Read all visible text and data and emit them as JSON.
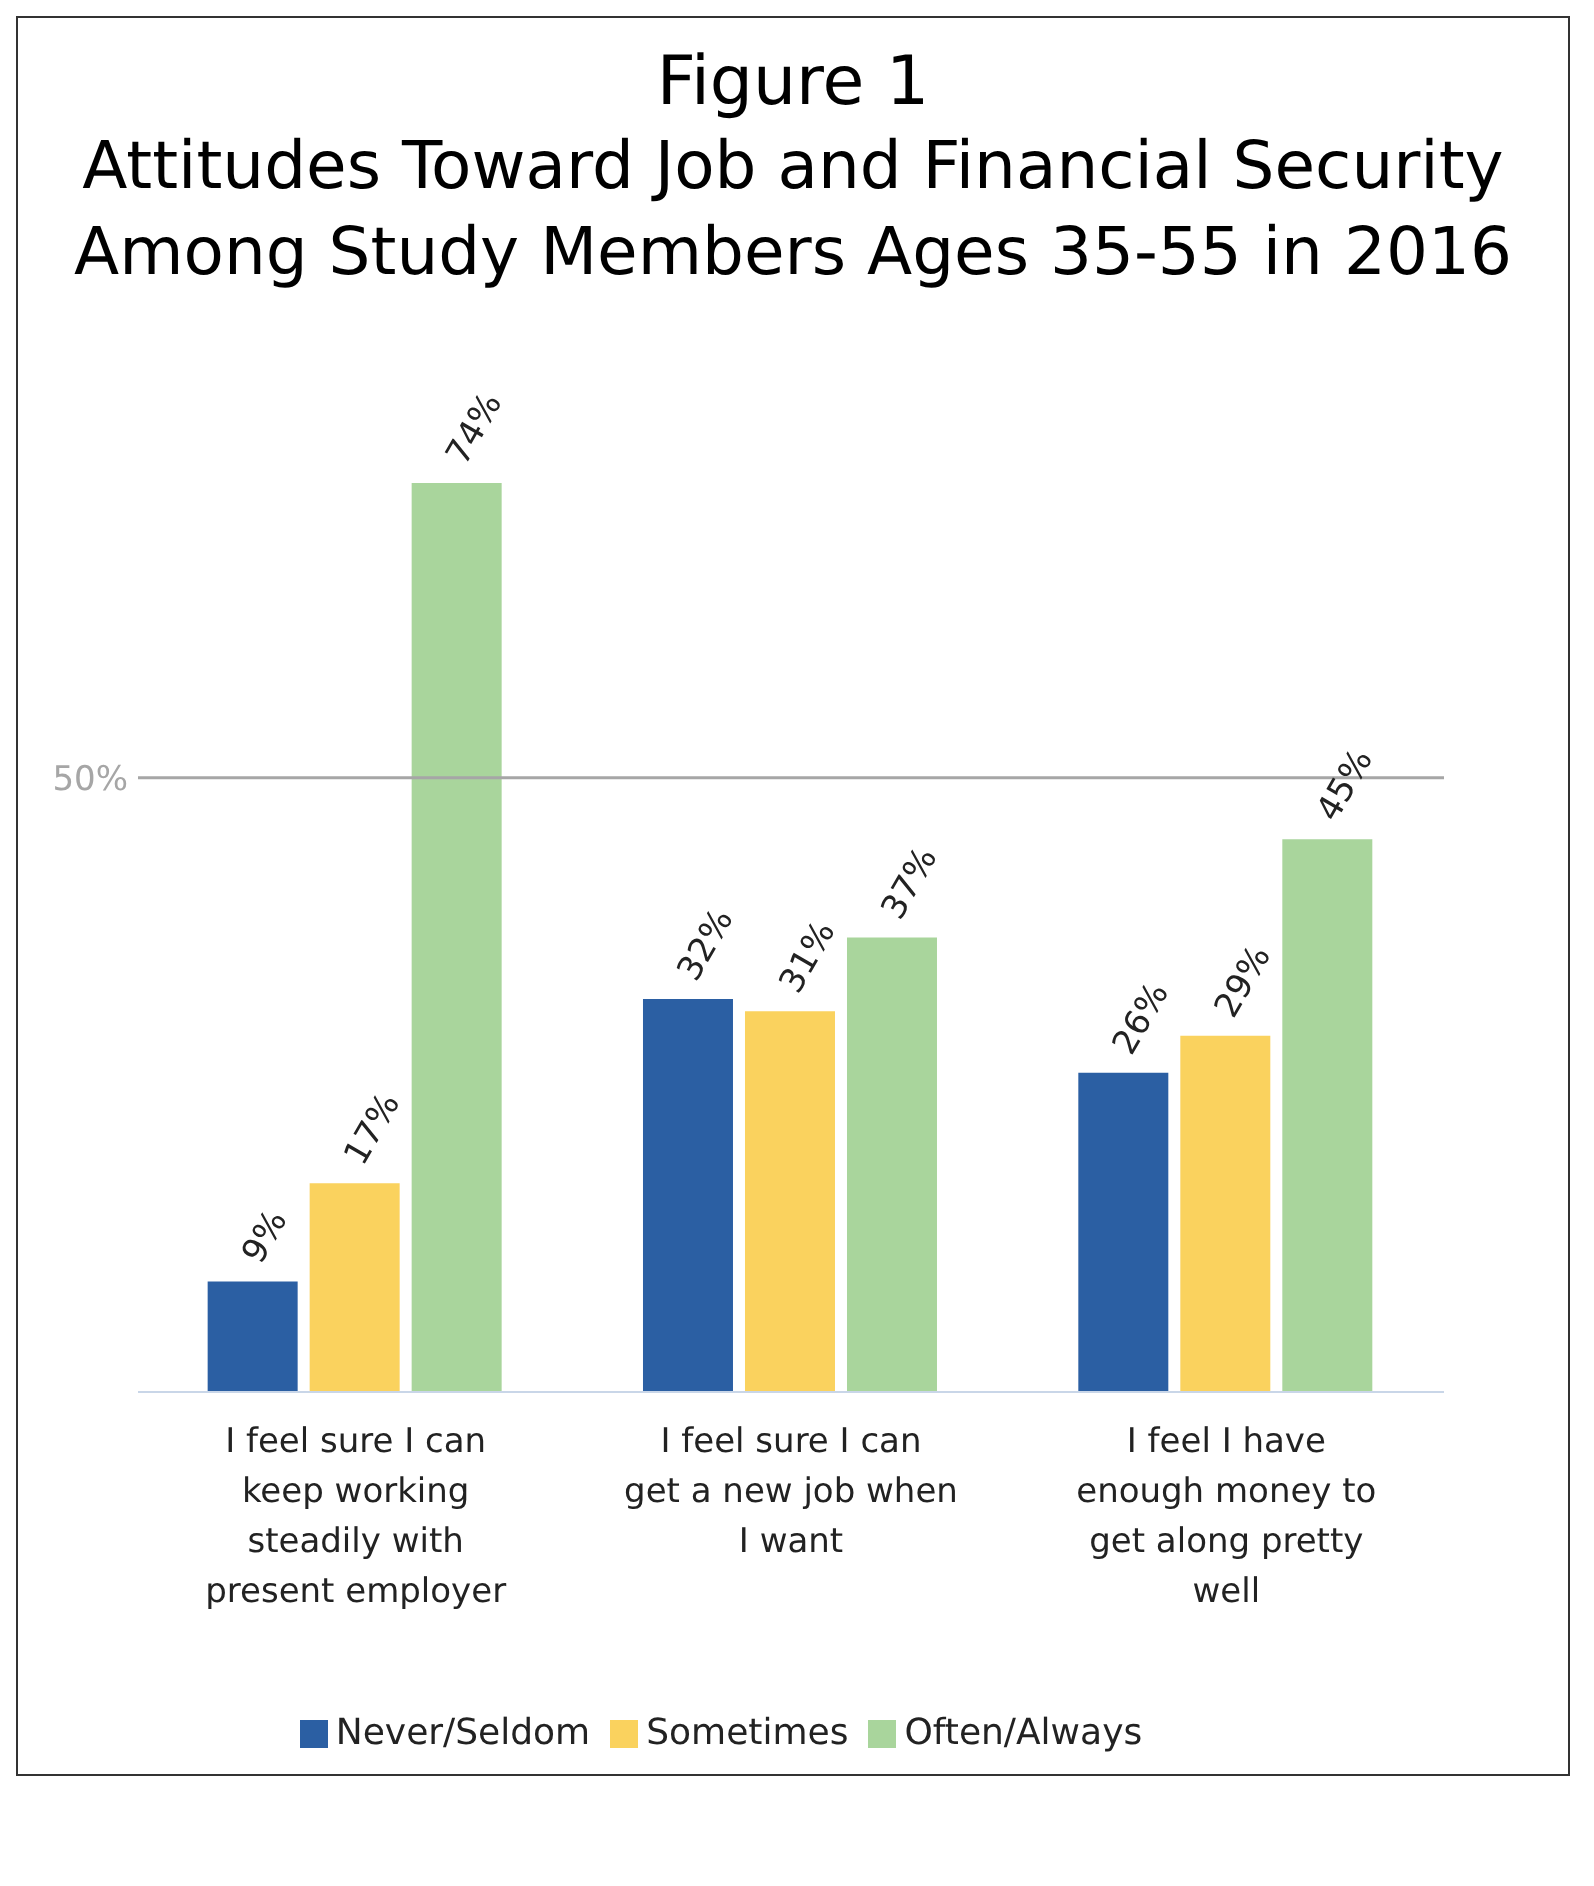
{
  "chart_data": {
    "type": "bar",
    "title": "Figure 1",
    "subtitle": "Attitudes Toward Job and Financial Security Among Study Members Ages 35-55 in 2016",
    "categories": [
      "I feel sure I can keep working steadily with present employer",
      "I feel sure I can get a new job when I want",
      "I feel I have enough money to get along pretty well"
    ],
    "series": [
      {
        "name": "Never/Seldom",
        "color": "#2b5fa3",
        "values": [
          9,
          32,
          26
        ],
        "value_labels": [
          "9%",
          "32%",
          "26%"
        ]
      },
      {
        "name": "Sometimes",
        "color": "#fad25e",
        "values": [
          17,
          31,
          29
        ],
        "value_labels": [
          "17%",
          "31%",
          "29%"
        ]
      },
      {
        "name": "Often/Always",
        "color": "#a9d59c",
        "values": [
          74,
          37,
          45
        ],
        "value_labels": [
          "74%",
          "37%",
          "45%"
        ]
      }
    ],
    "ref_lines": [
      {
        "axis": "y",
        "value": 50,
        "label": "50%",
        "color": "#a6a6a6"
      }
    ],
    "legend": "bottom"
  }
}
